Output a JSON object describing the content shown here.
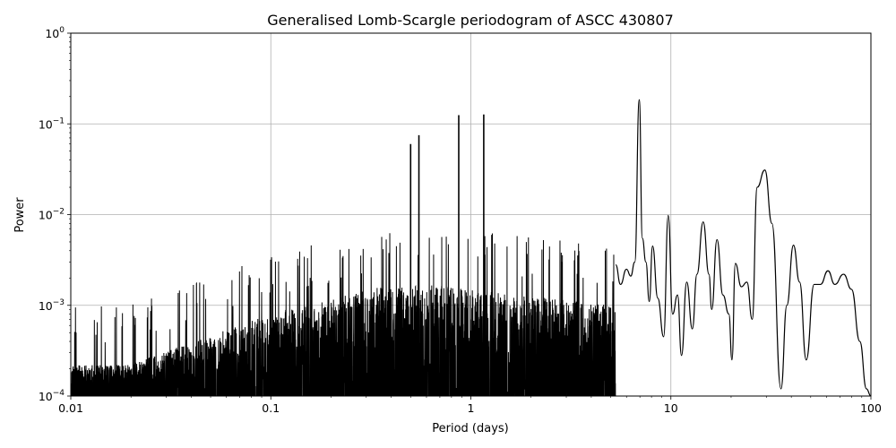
{
  "chart_data": {
    "type": "line",
    "title": "Generalised Lomb-Scargle periodogram of ASCC 430807",
    "xlabel": "Period (days)",
    "ylabel": "Power",
    "x_scale": "log",
    "y_scale": "log",
    "xlim": [
      0.01,
      100
    ],
    "ylim": [
      0.0001,
      1
    ],
    "grid": true,
    "x_ticks": [
      {
        "value": 0.01,
        "label": "0.01"
      },
      {
        "value": 0.1,
        "label": "0.1"
      },
      {
        "value": 1,
        "label": "1"
      },
      {
        "value": 10,
        "label": "10"
      },
      {
        "value": 100,
        "label": "100"
      }
    ],
    "y_ticks": [
      {
        "value": 0.0001,
        "base": "10",
        "exp": "−4"
      },
      {
        "value": 0.001,
        "base": "10",
        "exp": "−3"
      },
      {
        "value": 0.01,
        "base": "10",
        "exp": "−2"
      },
      {
        "value": 0.1,
        "base": "10",
        "exp": "−1"
      },
      {
        "value": 1,
        "base": "10",
        "exp": "0"
      }
    ],
    "line_color": "#000000",
    "peaks": [
      {
        "period": 0.5,
        "power": 0.06
      },
      {
        "period": 0.55,
        "power": 0.075
      },
      {
        "period": 0.87,
        "power": 0.125
      },
      {
        "period": 1.16,
        "power": 0.127
      },
      {
        "period": 6.95,
        "power": 0.185
      },
      {
        "period": 9.7,
        "power": 0.0098
      },
      {
        "period": 14.5,
        "power": 0.0083
      },
      {
        "period": 29.5,
        "power": 0.031
      }
    ],
    "long_period_curve": [
      [
        5.3,
        0.0028
      ],
      [
        5.6,
        0.0017
      ],
      [
        6.0,
        0.0025
      ],
      [
        6.3,
        0.0021
      ],
      [
        6.6,
        0.003
      ],
      [
        6.95,
        0.185
      ],
      [
        7.2,
        0.0055
      ],
      [
        7.5,
        0.003
      ],
      [
        7.8,
        0.0011
      ],
      [
        8.1,
        0.0045
      ],
      [
        8.6,
        0.0012
      ],
      [
        9.2,
        0.00045
      ],
      [
        9.7,
        0.0098
      ],
      [
        10.2,
        0.0008
      ],
      [
        10.8,
        0.0013
      ],
      [
        11.3,
        0.00028
      ],
      [
        12.0,
        0.0018
      ],
      [
        12.8,
        0.00055
      ],
      [
        13.5,
        0.0022
      ],
      [
        14.5,
        0.0083
      ],
      [
        15.5,
        0.0022
      ],
      [
        16.0,
        0.0009
      ],
      [
        17.0,
        0.0053
      ],
      [
        18.2,
        0.0013
      ],
      [
        19.5,
        0.0008
      ],
      [
        20.2,
        0.00025
      ],
      [
        21.0,
        0.0029
      ],
      [
        22.5,
        0.0016
      ],
      [
        24.0,
        0.0018
      ],
      [
        25.5,
        0.0007
      ],
      [
        27.0,
        0.02
      ],
      [
        29.5,
        0.031
      ],
      [
        32.0,
        0.008
      ],
      [
        35.5,
        0.00012
      ],
      [
        38.0,
        0.001
      ],
      [
        41.0,
        0.0046
      ],
      [
        44.0,
        0.0018
      ],
      [
        47.5,
        0.00025
      ],
      [
        52.0,
        0.0017
      ],
      [
        56.0,
        0.0017
      ],
      [
        61.0,
        0.0024
      ],
      [
        66.0,
        0.0017
      ],
      [
        73.0,
        0.0022
      ],
      [
        80.0,
        0.0015
      ],
      [
        88.0,
        0.0004
      ],
      [
        95.0,
        0.00012
      ],
      [
        100.0,
        0.0001
      ]
    ]
  }
}
